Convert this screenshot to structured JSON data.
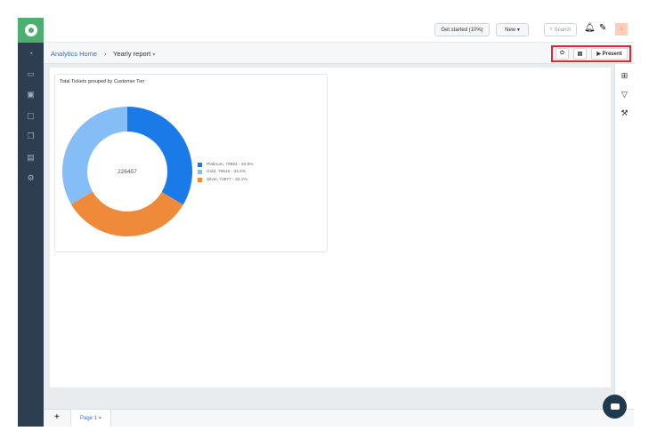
{
  "topbar": {
    "get_started": "Get started (10%)",
    "new": "New",
    "search_placeholder": "Search",
    "avatar": "S"
  },
  "breadcrumb": {
    "home": "Analytics Home",
    "separator": "›",
    "current": "Yearly report"
  },
  "toolbar": {
    "present": "Present"
  },
  "sidebar": {
    "items": [
      "dashboard-icon",
      "tickets-icon",
      "contacts-icon",
      "monitor-icon",
      "groups-icon",
      "reports-icon",
      "settings-icon"
    ]
  },
  "colors": {
    "platinum": "#1a7be8",
    "gold": "#85bdf7",
    "silver": "#ef8a3a",
    "highlight": "#e8232f"
  },
  "chart_data": {
    "type": "pie",
    "title": "Total Tickets grouped by Customer Tier",
    "center_label": "226457",
    "slices": [
      {
        "name": "Platinum",
        "value": 75964,
        "percent": 33.5,
        "label": "Platinum, 75964 - 33.5%"
      },
      {
        "name": "Silver",
        "value": 74877,
        "percent": 33.1,
        "label": "Silver, 74877 - 33.1%"
      },
      {
        "name": "Gold",
        "value": 75616,
        "percent": 33.4,
        "label": "Gold, 75616 - 33.4%"
      }
    ],
    "legend_order": [
      "Platinum",
      "Gold",
      "Silver"
    ],
    "legend_placement": "right",
    "donut": true
  },
  "bottom": {
    "add": "+",
    "page": "Page 1"
  }
}
